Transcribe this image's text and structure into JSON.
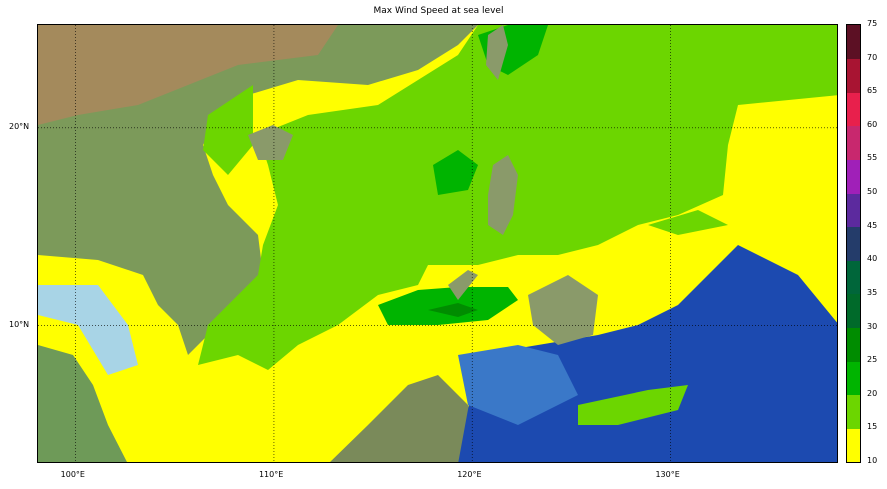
{
  "title": "Max Wind Speed at sea level",
  "map": {
    "extent": {
      "lon": [
        98.1,
        138.5
      ],
      "lat": [
        3.0,
        25.2
      ]
    },
    "lon_ticks": [
      {
        "value": 100,
        "label": "100°E"
      },
      {
        "value": 110,
        "label": "110°E"
      },
      {
        "value": 120,
        "label": "120°E"
      },
      {
        "value": 130,
        "label": "130°E"
      }
    ],
    "lat_ticks": [
      {
        "value": 20,
        "label": "20°N"
      },
      {
        "value": 10,
        "label": "10°N"
      }
    ],
    "gridlines": "dotted",
    "background": "shaded relief"
  },
  "colorbar": {
    "levels": [
      10,
      15,
      20,
      25,
      30,
      35,
      40,
      45,
      50,
      55,
      60,
      65,
      70,
      75
    ],
    "labels": [
      "10",
      "15",
      "20",
      "25",
      "30",
      "35",
      "40",
      "45",
      "50",
      "55",
      "60",
      "65",
      "70",
      "75"
    ],
    "colors": [
      "#ffff00",
      "#6cd600",
      "#00b400",
      "#008c00",
      "#006a2a",
      "#00663a",
      "#243c6a",
      "#5c2a9e",
      "#a020b8",
      "#c8286e",
      "#e8204c",
      "#a81432",
      "#5c1024"
    ]
  }
}
